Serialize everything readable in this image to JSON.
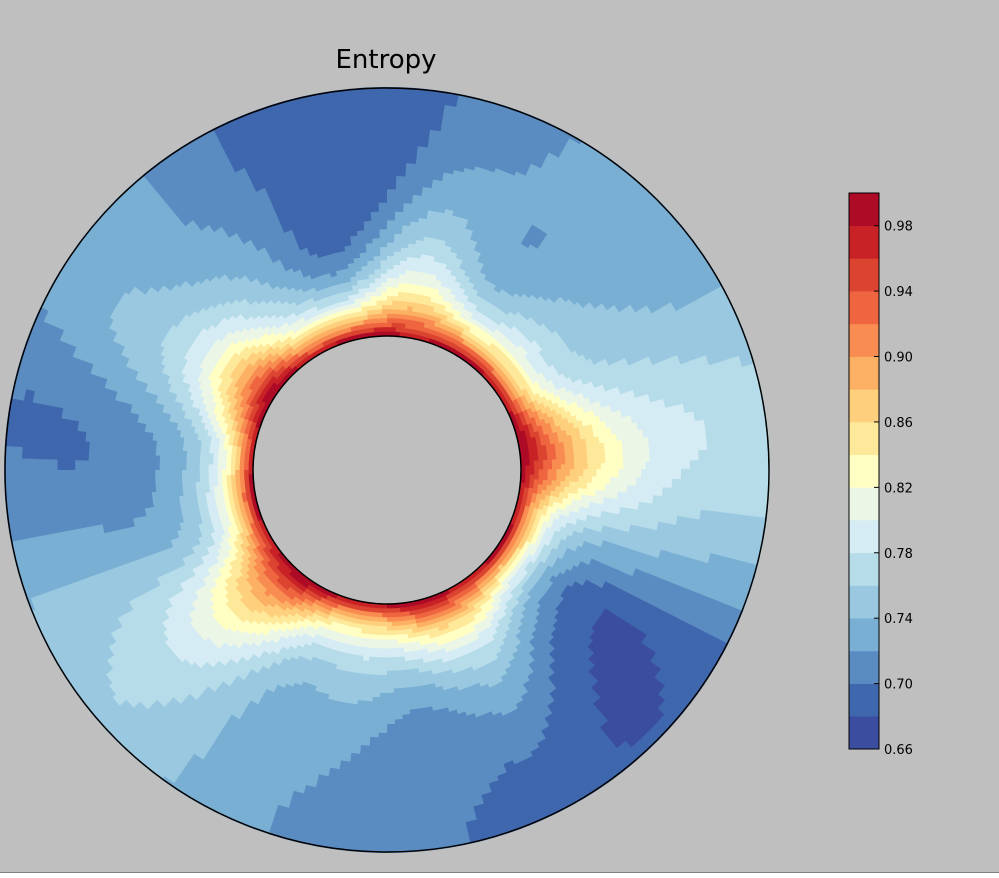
{
  "chart_data": {
    "type": "heatmap",
    "subtype": "annular-filled-contour",
    "title": "Entropy",
    "colorbar": {
      "placement": "right",
      "levels": [
        0.66,
        0.68,
        0.7,
        0.72,
        0.74,
        0.76,
        0.78,
        0.8,
        0.82,
        0.84,
        0.86,
        0.88,
        0.9,
        0.92,
        0.94,
        0.96,
        0.98,
        1.0
      ],
      "colors": [
        "#3a4d9e",
        "#3e67ad",
        "#5a8cc2",
        "#7aafd4",
        "#99c8e0",
        "#b6dce9",
        "#d5ecf4",
        "#ebf6e6",
        "#ffffc4",
        "#fee99a",
        "#fed07e",
        "#fcb064",
        "#f88c51",
        "#ee6540",
        "#db4430",
        "#c82227",
        "#ad0b26"
      ],
      "tick_labels": [
        "0.66",
        "0.70",
        "0.74",
        "0.78",
        "0.82",
        "0.86",
        "0.90",
        "0.94",
        "0.98"
      ],
      "tick_values": [
        0.66,
        0.7,
        0.74,
        0.78,
        0.82,
        0.86,
        0.9,
        0.94,
        0.98
      ]
    },
    "domain": {
      "shape": "annulus"
    },
    "features": {
      "inner_boundary_value": 1.0,
      "inner_plumes": 5,
      "outer_region_value_range": [
        0.68,
        0.78
      ]
    }
  },
  "colors": {
    "background": "#bfbfbf",
    "hole": "#bfbfbf",
    "outline": "#000000"
  }
}
